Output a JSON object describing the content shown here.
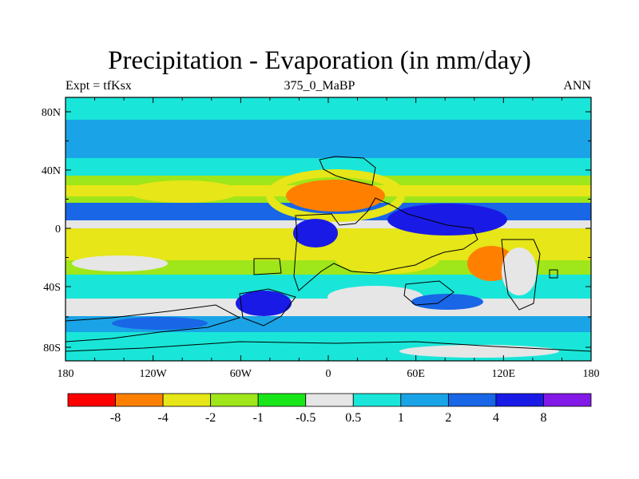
{
  "title": "Precipitation - Evaporation (in mm/day)",
  "left_label": "Expt = tfKsx",
  "center_label": "375_0_MaBP",
  "right_label": "ANN",
  "map": {
    "lat_ticks": [
      "80N",
      "40N",
      "0",
      "40S",
      "80S"
    ],
    "lon_ticks": [
      "180",
      "120W",
      "60W",
      "0",
      "60E",
      "120E",
      "180"
    ],
    "colors": {
      "red": "#ff0000",
      "orange": "#ff8000",
      "yellow": "#e6e619",
      "yellowgreen": "#9fe61a",
      "green": "#19e619",
      "gray": "#e6e6e6",
      "cyan": "#19e6d9",
      "skyblue": "#1aa3e6",
      "blue": "#1966e6",
      "darkblue": "#1a1ae6",
      "purple": "#8219e6"
    }
  },
  "colorbar": {
    "colors": [
      "#ff0000",
      "#ff8000",
      "#e6e619",
      "#9fe61a",
      "#19e619",
      "#e6e6e6",
      "#19e6d9",
      "#1aa3e6",
      "#1966e6",
      "#1a1ae6",
      "#8219e6"
    ],
    "labels": [
      "-8",
      "-4",
      "-2",
      "-1",
      "-0.5",
      "0.5",
      "1",
      "2",
      "4",
      "8"
    ]
  }
}
